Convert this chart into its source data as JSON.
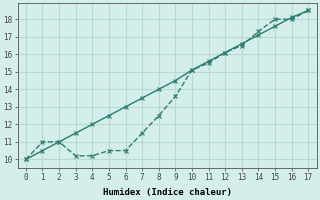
{
  "xlabel": "Humidex (Indice chaleur)",
  "background_color": "#d4eeeb",
  "grid_color": "#b8d8d4",
  "line_color": "#2d7d6e",
  "xlim": [
    -0.5,
    17.5
  ],
  "ylim": [
    9.5,
    18.9
  ],
  "x_ticks": [
    0,
    1,
    2,
    3,
    4,
    5,
    6,
    7,
    8,
    9,
    10,
    11,
    12,
    13,
    14,
    15,
    16,
    17
  ],
  "y_ticks": [
    10,
    11,
    12,
    13,
    14,
    15,
    16,
    17,
    18
  ],
  "line_straight_x": [
    0,
    1,
    2,
    3,
    4,
    5,
    6,
    7,
    8,
    9,
    10,
    11,
    12,
    13,
    14,
    15,
    16,
    17
  ],
  "line_straight_y": [
    10.0,
    10.5,
    11.0,
    11.5,
    12.0,
    12.5,
    13.0,
    13.5,
    14.0,
    14.5,
    15.1,
    15.6,
    16.1,
    16.6,
    17.1,
    17.6,
    18.1,
    18.5
  ],
  "line_humidex_x": [
    0,
    1,
    2,
    3,
    4,
    5,
    6,
    7,
    8,
    9,
    10,
    11,
    12,
    13,
    14,
    15,
    16,
    17
  ],
  "line_humidex_y": [
    10.0,
    11.0,
    11.0,
    10.2,
    10.2,
    10.5,
    10.5,
    11.5,
    12.5,
    13.6,
    15.1,
    15.5,
    16.1,
    16.5,
    17.3,
    18.0,
    18.0,
    18.5
  ]
}
